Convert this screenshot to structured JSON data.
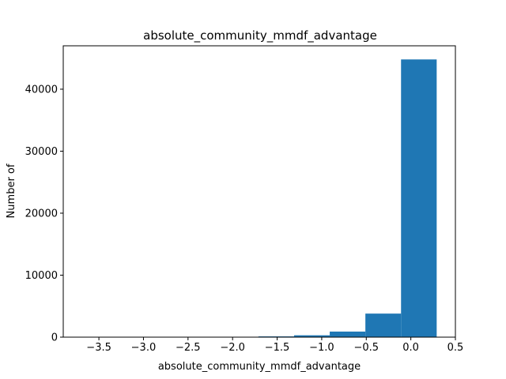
{
  "chart_data": {
    "type": "bar",
    "subtype": "histogram",
    "title": "absolute_community_mmdf_advantage",
    "xlabel": "absolute_community_mmdf_advantage",
    "ylabel": "Number of",
    "xlim": [
      -3.9,
      0.5
    ],
    "ylim": [
      0,
      47000
    ],
    "xticks": [
      -3.5,
      -3.0,
      -2.5,
      -2.0,
      -1.5,
      -1.0,
      -0.5,
      0.0,
      0.5
    ],
    "xtick_labels": [
      "−3.5",
      "−3.0",
      "−2.5",
      "−2.0",
      "−1.5",
      "−1.0",
      "−0.5",
      "0.0",
      "0.5"
    ],
    "yticks": [
      0,
      10000,
      20000,
      30000,
      40000
    ],
    "ytick_labels": [
      "0",
      "10000",
      "20000",
      "30000",
      "40000"
    ],
    "bins": [
      {
        "x0": -3.71,
        "x1": -3.31,
        "count": 0
      },
      {
        "x0": -3.31,
        "x1": -2.91,
        "count": 0
      },
      {
        "x0": -2.91,
        "x1": -2.51,
        "count": 0
      },
      {
        "x0": -2.51,
        "x1": -2.11,
        "count": 0
      },
      {
        "x0": -2.11,
        "x1": -1.71,
        "count": 20
      },
      {
        "x0": -1.71,
        "x1": -1.31,
        "count": 120
      },
      {
        "x0": -1.31,
        "x1": -0.91,
        "count": 300
      },
      {
        "x0": -0.91,
        "x1": -0.51,
        "count": 900
      },
      {
        "x0": -0.51,
        "x1": -0.11,
        "count": 3800
      },
      {
        "x0": -0.11,
        "x1": 0.29,
        "count": 44800
      }
    ],
    "bar_color": "#1f77b4",
    "grid": false,
    "legend": "none"
  }
}
